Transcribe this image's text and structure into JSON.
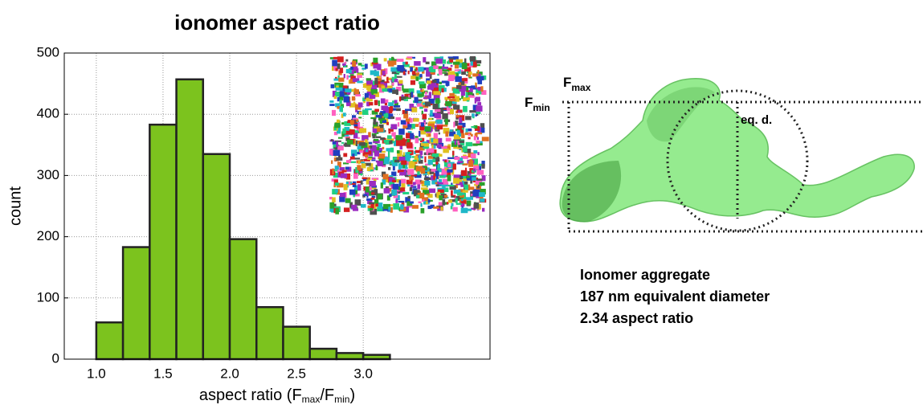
{
  "chart_data": {
    "type": "histogram",
    "title": "ionomer aspect ratio",
    "xlabel": [
      "aspect ratio (F",
      "max",
      "/F",
      "min",
      ")"
    ],
    "ylabel": "count",
    "bins": [
      1.0,
      1.2,
      1.4,
      1.6,
      1.8,
      2.0,
      2.2,
      2.4,
      2.6,
      2.8,
      3.0,
      3.2
    ],
    "values": [
      60,
      183,
      383,
      457,
      335,
      196,
      85,
      53,
      17,
      10,
      7
    ],
    "color": "#7cc31e",
    "xlim": [
      0.76,
      3.95
    ],
    "xticks": [
      {
        "value": 1.0,
        "label": "1.0"
      },
      {
        "value": 1.5,
        "label": "1.5"
      },
      {
        "value": 2.0,
        "label": "2.0"
      },
      {
        "value": 2.5,
        "label": "2.5"
      },
      {
        "value": 3.0,
        "label": "3.0"
      }
    ],
    "ylim": [
      0,
      500
    ],
    "yticks": [
      0,
      100,
      200,
      300,
      400,
      500
    ],
    "grid": true
  },
  "diagram": {
    "fmax": [
      "F",
      "max"
    ],
    "fmin": [
      "F",
      "min"
    ],
    "eq_d": "eq. d.",
    "caption": [
      "Ionomer aggregate",
      "187 nm equivalent diameter",
      "2.34 aspect ratio"
    ]
  }
}
